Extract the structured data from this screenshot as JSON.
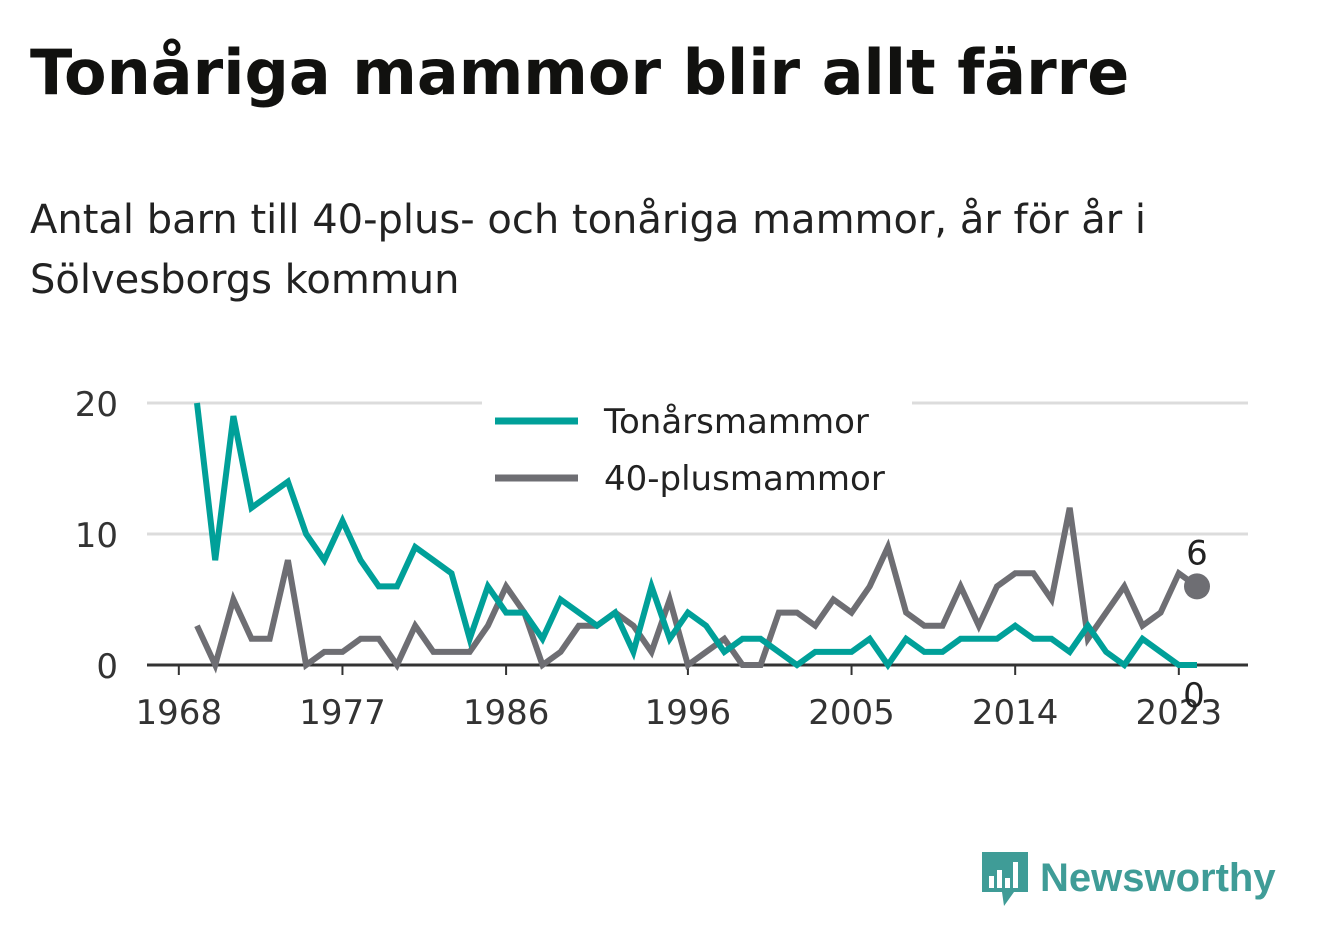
{
  "title": "Tonåriga mammor blir allt färre",
  "subtitle": "Antal barn till 40-plus- och tonåriga mammor, år för år i Sölvesborgs kommun",
  "chart_data": {
    "type": "line",
    "x": [
      1969,
      1970,
      1971,
      1972,
      1973,
      1974,
      1975,
      1976,
      1977,
      1978,
      1979,
      1980,
      1981,
      1982,
      1983,
      1984,
      1985,
      1986,
      1987,
      1988,
      1989,
      1990,
      1991,
      1992,
      1993,
      1994,
      1995,
      1996,
      1997,
      1998,
      1999,
      2000,
      2001,
      2002,
      2003,
      2004,
      2005,
      2006,
      2007,
      2008,
      2009,
      2010,
      2011,
      2012,
      2013,
      2014,
      2015,
      2016,
      2017,
      2018,
      2019,
      2020,
      2021,
      2022,
      2023,
      2024
    ],
    "series": [
      {
        "name": "Tonårsmammor",
        "color": "#00a099",
        "values": [
          20,
          8,
          19,
          12,
          13,
          14,
          10,
          8,
          11,
          8,
          6,
          6,
          9,
          8,
          7,
          2,
          6,
          4,
          4,
          2,
          5,
          4,
          3,
          4,
          1,
          6,
          2,
          4,
          3,
          1,
          2,
          2,
          1,
          0,
          1,
          1,
          1,
          2,
          0,
          2,
          1,
          1,
          2,
          2,
          2,
          3,
          2,
          2,
          1,
          3,
          1,
          0,
          2,
          1,
          0,
          0
        ]
      },
      {
        "name": "40-plusmammor",
        "color": "#6e6e73",
        "values": [
          3,
          0,
          5,
          2,
          2,
          8,
          0,
          1,
          1,
          2,
          2,
          0,
          3,
          1,
          1,
          1,
          3,
          6,
          4,
          0,
          1,
          3,
          3,
          4,
          3,
          1,
          5,
          0,
          1,
          2,
          0,
          0,
          4,
          4,
          3,
          5,
          4,
          6,
          9,
          4,
          3,
          3,
          6,
          3,
          6,
          7,
          7,
          5,
          12,
          2,
          4,
          6,
          3,
          4,
          7,
          6
        ]
      }
    ],
    "xticks": [
      "1968",
      "1977",
      "1986",
      "1996",
      "2005",
      "2014",
      "2023"
    ],
    "xtick_values": [
      1968,
      1977,
      1986,
      1996,
      2005,
      2014,
      2023
    ],
    "yticks": [
      "0",
      "10",
      "20"
    ],
    "ylim": [
      0,
      20
    ],
    "xlim": [
      1966,
      2027
    ],
    "end_labels": [
      {
        "series": "40-plusmammor",
        "value": "6"
      },
      {
        "series": "Tonårsmammor",
        "value": "0"
      }
    ],
    "legend_position": "top-center",
    "grid": true
  },
  "logo": {
    "text": "Newsworthy",
    "icon": "bar-chart-speech-bubble-icon",
    "color": "#3f9c97"
  }
}
